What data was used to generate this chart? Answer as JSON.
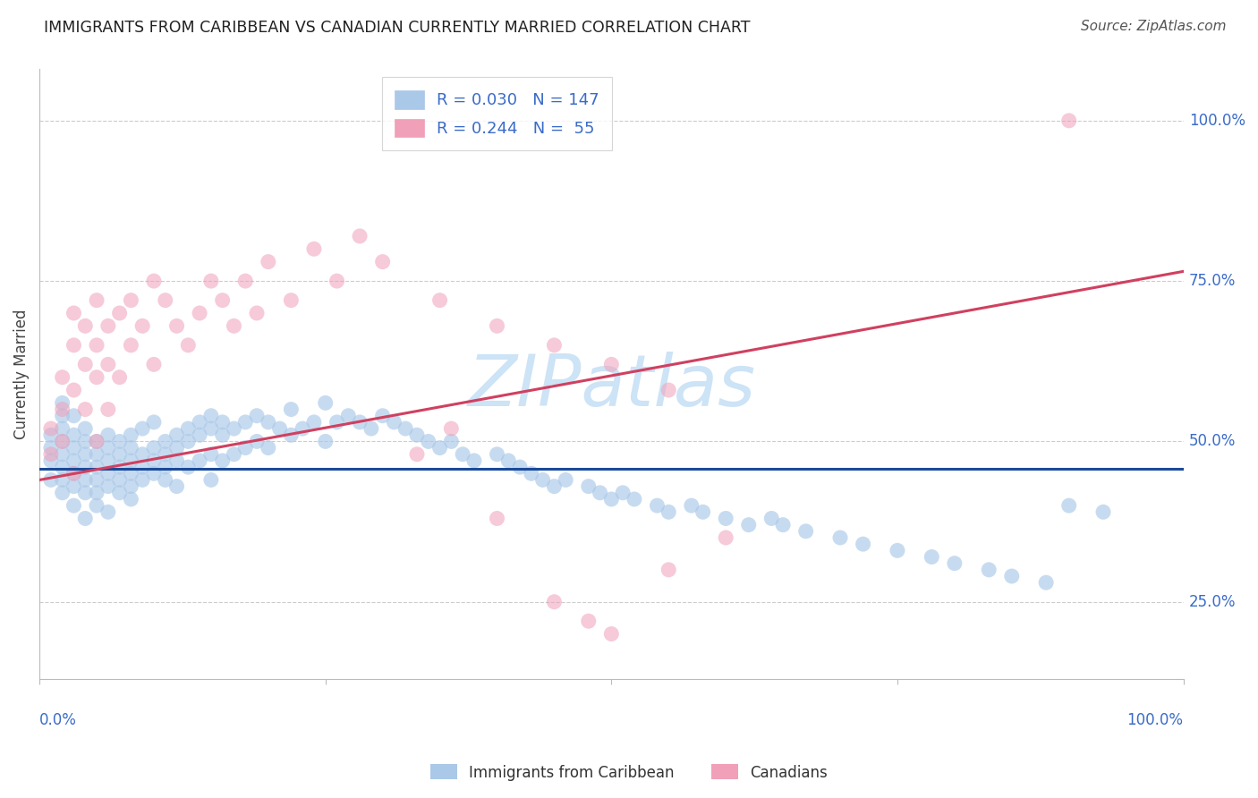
{
  "title": "IMMIGRANTS FROM CARIBBEAN VS CANADIAN CURRENTLY MARRIED CORRELATION CHART",
  "source": "Source: ZipAtlas.com",
  "ylabel": "Currently Married",
  "xlabel_bottom_left": "0.0%",
  "xlabel_bottom_right": "100.0%",
  "ytick_labels": [
    "25.0%",
    "50.0%",
    "75.0%",
    "100.0%"
  ],
  "ytick_values": [
    0.25,
    0.5,
    0.75,
    1.0
  ],
  "blue_color": "#aac8e8",
  "pink_color": "#f0a0b8",
  "blue_line_color": "#1a4a9a",
  "pink_line_color": "#d04060",
  "watermark": "ZIPatlas",
  "watermark_color": "#c5dff5",
  "background_color": "#ffffff",
  "grid_color": "#cccccc",
  "blue_trend_x": [
    0.0,
    1.0
  ],
  "blue_trend_y": [
    0.458,
    0.458
  ],
  "pink_trend_x": [
    0.0,
    1.0
  ],
  "pink_trend_y": [
    0.44,
    0.765
  ],
  "xlim": [
    0.0,
    1.0
  ],
  "ylim": [
    0.13,
    1.08
  ],
  "blue_scatter_x": [
    0.01,
    0.01,
    0.01,
    0.01,
    0.02,
    0.02,
    0.02,
    0.02,
    0.02,
    0.02,
    0.02,
    0.02,
    0.03,
    0.03,
    0.03,
    0.03,
    0.03,
    0.03,
    0.03,
    0.04,
    0.04,
    0.04,
    0.04,
    0.04,
    0.04,
    0.04,
    0.05,
    0.05,
    0.05,
    0.05,
    0.05,
    0.05,
    0.06,
    0.06,
    0.06,
    0.06,
    0.06,
    0.06,
    0.07,
    0.07,
    0.07,
    0.07,
    0.07,
    0.08,
    0.08,
    0.08,
    0.08,
    0.08,
    0.08,
    0.09,
    0.09,
    0.09,
    0.09,
    0.1,
    0.1,
    0.1,
    0.1,
    0.11,
    0.11,
    0.11,
    0.11,
    0.12,
    0.12,
    0.12,
    0.12,
    0.13,
    0.13,
    0.13,
    0.14,
    0.14,
    0.14,
    0.15,
    0.15,
    0.15,
    0.15,
    0.16,
    0.16,
    0.16,
    0.17,
    0.17,
    0.18,
    0.18,
    0.19,
    0.19,
    0.2,
    0.2,
    0.21,
    0.22,
    0.22,
    0.23,
    0.24,
    0.25,
    0.25,
    0.26,
    0.27,
    0.28,
    0.29,
    0.3,
    0.31,
    0.32,
    0.33,
    0.34,
    0.35,
    0.36,
    0.37,
    0.38,
    0.4,
    0.41,
    0.42,
    0.43,
    0.44,
    0.45,
    0.46,
    0.48,
    0.49,
    0.5,
    0.51,
    0.52,
    0.54,
    0.55,
    0.57,
    0.58,
    0.6,
    0.62,
    0.64,
    0.65,
    0.67,
    0.7,
    0.72,
    0.75,
    0.78,
    0.8,
    0.83,
    0.85,
    0.88,
    0.9,
    0.93
  ],
  "blue_scatter_y": [
    0.49,
    0.51,
    0.47,
    0.44,
    0.48,
    0.5,
    0.52,
    0.46,
    0.44,
    0.42,
    0.54,
    0.56,
    0.47,
    0.49,
    0.51,
    0.45,
    0.43,
    0.4,
    0.54,
    0.48,
    0.5,
    0.46,
    0.44,
    0.42,
    0.52,
    0.38,
    0.46,
    0.48,
    0.44,
    0.42,
    0.5,
    0.4,
    0.47,
    0.49,
    0.45,
    0.43,
    0.51,
    0.39,
    0.48,
    0.46,
    0.44,
    0.5,
    0.42,
    0.47,
    0.49,
    0.45,
    0.43,
    0.41,
    0.51,
    0.48,
    0.46,
    0.44,
    0.52,
    0.49,
    0.47,
    0.45,
    0.53,
    0.5,
    0.48,
    0.46,
    0.44,
    0.51,
    0.49,
    0.47,
    0.43,
    0.52,
    0.5,
    0.46,
    0.53,
    0.51,
    0.47,
    0.54,
    0.52,
    0.48,
    0.44,
    0.53,
    0.51,
    0.47,
    0.52,
    0.48,
    0.53,
    0.49,
    0.54,
    0.5,
    0.53,
    0.49,
    0.52,
    0.55,
    0.51,
    0.52,
    0.53,
    0.56,
    0.5,
    0.53,
    0.54,
    0.53,
    0.52,
    0.54,
    0.53,
    0.52,
    0.51,
    0.5,
    0.49,
    0.5,
    0.48,
    0.47,
    0.48,
    0.47,
    0.46,
    0.45,
    0.44,
    0.43,
    0.44,
    0.43,
    0.42,
    0.41,
    0.42,
    0.41,
    0.4,
    0.39,
    0.4,
    0.39,
    0.38,
    0.37,
    0.38,
    0.37,
    0.36,
    0.35,
    0.34,
    0.33,
    0.32,
    0.31,
    0.3,
    0.29,
    0.28,
    0.4,
    0.39
  ],
  "pink_scatter_x": [
    0.01,
    0.01,
    0.02,
    0.02,
    0.02,
    0.03,
    0.03,
    0.03,
    0.03,
    0.04,
    0.04,
    0.04,
    0.05,
    0.05,
    0.05,
    0.05,
    0.06,
    0.06,
    0.06,
    0.07,
    0.07,
    0.08,
    0.08,
    0.09,
    0.1,
    0.1,
    0.11,
    0.12,
    0.13,
    0.14,
    0.15,
    0.16,
    0.17,
    0.18,
    0.19,
    0.2,
    0.22,
    0.24,
    0.26,
    0.28,
    0.3,
    0.33,
    0.36,
    0.4,
    0.45,
    0.48,
    0.5,
    0.55,
    0.6,
    0.9,
    0.35,
    0.4,
    0.45,
    0.5,
    0.55
  ],
  "pink_scatter_y": [
    0.52,
    0.48,
    0.6,
    0.55,
    0.5,
    0.58,
    0.65,
    0.7,
    0.45,
    0.62,
    0.55,
    0.68,
    0.6,
    0.65,
    0.5,
    0.72,
    0.55,
    0.62,
    0.68,
    0.6,
    0.7,
    0.65,
    0.72,
    0.68,
    0.75,
    0.62,
    0.72,
    0.68,
    0.65,
    0.7,
    0.75,
    0.72,
    0.68,
    0.75,
    0.7,
    0.78,
    0.72,
    0.8,
    0.75,
    0.82,
    0.78,
    0.48,
    0.52,
    0.38,
    0.25,
    0.22,
    0.2,
    0.3,
    0.35,
    1.0,
    0.72,
    0.68,
    0.65,
    0.62,
    0.58
  ]
}
